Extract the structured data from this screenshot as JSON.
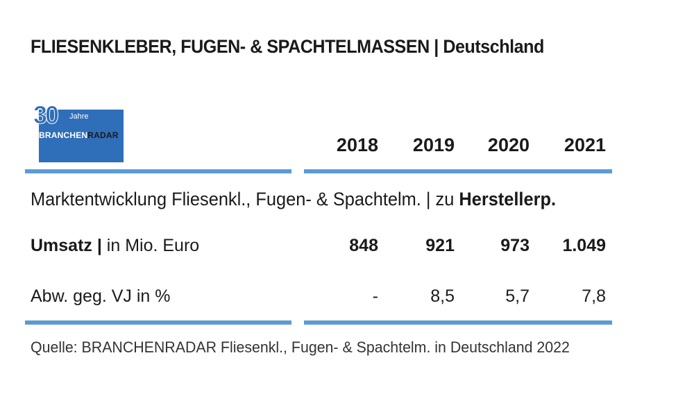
{
  "title": "FLIESENKLEBER, FUGEN- & SPACHTELMASSEN | Deutschland",
  "logo": {
    "number": "30",
    "jahre": "Jahre",
    "brand_part1": "BRANCHEN",
    "brand_part2": "RADAR",
    "color": "#2f6eb8"
  },
  "accent_color": "#5b9bd5",
  "subtitle": {
    "text": "Marktentwicklung Fliesenkl., Fugen- & Spachtelm. | zu ",
    "bold": "Herstellerp."
  },
  "chart_data": {
    "type": "table",
    "columns": [
      "2018",
      "2019",
      "2020",
      "2021"
    ],
    "rows": [
      {
        "label_bold": "Umsatz |",
        "label_rest": " in Mio. Euro",
        "values": [
          "848",
          "921",
          "973",
          "1.049"
        ],
        "bold": true
      },
      {
        "label_bold": "",
        "label_rest": "Abw. geg. VJ in %",
        "values": [
          "-",
          "8,5",
          "5,7",
          "7,8"
        ],
        "bold": false
      }
    ]
  },
  "source": "Quelle: BRANCHENRADAR Fliesenkl., Fugen- & Spachtelm. in Deutschland 2022"
}
